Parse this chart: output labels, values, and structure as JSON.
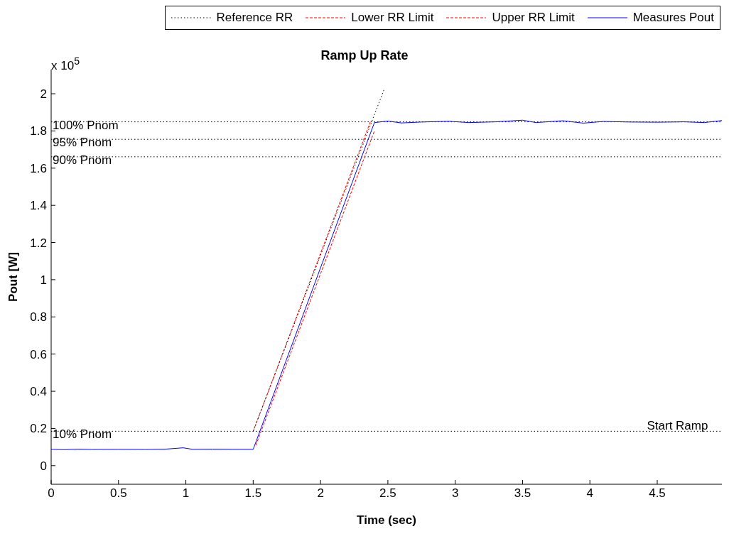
{
  "chart_data": {
    "type": "line",
    "title": "Ramp Up Rate",
    "xlabel": "Time (sec)",
    "ylabel": "Pout [W]",
    "xlim": [
      0,
      4.98
    ],
    "xticks": [
      0,
      0.5,
      1,
      1.5,
      2,
      2.5,
      3,
      3.5,
      4,
      4.5
    ],
    "ylim": [
      -0.1,
      2.13
    ],
    "yticks": [
      0,
      0.2,
      0.4,
      0.6,
      0.8,
      1,
      1.2,
      1.4,
      1.6,
      1.8,
      2
    ],
    "legend": "top",
    "marker": "none",
    "series": [
      {
        "name": "Reference RR",
        "color": "#000000",
        "line_style": "dotted",
        "x": [
          1.5,
          2.47
        ],
        "values": [
          0.185,
          2.02
        ]
      },
      {
        "name": "Lower RR Limit",
        "color": "#ff0000",
        "line_style": "dashed",
        "x": [
          1.52,
          2.4
        ],
        "values": [
          0.11,
          1.8
        ]
      },
      {
        "name": "Upper RR Limit",
        "color": "#ff0000",
        "line_style": "dashed",
        "x": [
          1.5,
          2.37
        ],
        "values": [
          0.185,
          1.849
        ]
      },
      {
        "name": "Measures Pout",
        "color": "#0000ff",
        "line_style": "solid",
        "x": [
          0,
          0.1,
          0.2,
          0.3,
          0.5,
          0.7,
          0.85,
          0.98,
          1.05,
          1.2,
          1.35,
          1.5,
          2.4,
          2.5,
          2.6,
          2.75,
          2.95,
          3.1,
          3.3,
          3.5,
          3.6,
          3.8,
          3.95,
          4.1,
          4.3,
          4.5,
          4.7,
          4.85,
          4.98
        ],
        "values": [
          0.088,
          0.086,
          0.089,
          0.087,
          0.088,
          0.087,
          0.089,
          0.096,
          0.088,
          0.089,
          0.088,
          0.088,
          1.845,
          1.853,
          1.843,
          1.848,
          1.852,
          1.845,
          1.849,
          1.858,
          1.845,
          1.855,
          1.842,
          1.851,
          1.848,
          1.847,
          1.849,
          1.845,
          1.856
        ]
      }
    ],
    "ref_lines": [
      {
        "axis": "y",
        "value": 1.849,
        "label": "100% Pnom",
        "color": "#000000",
        "line_style": "dotted"
      },
      {
        "axis": "y",
        "value": 1.755,
        "label": "95% Pnom",
        "color": "#000000",
        "line_style": "dotted"
      },
      {
        "axis": "y",
        "value": 1.661,
        "label": "90% Pnom",
        "color": "#000000",
        "line_style": "dotted"
      },
      {
        "axis": "y",
        "value": 0.185,
        "label": "10% Pnom",
        "color": "#000000",
        "line_style": "dotted"
      }
    ],
    "annotations": [
      "x 10$^{5}$",
      {
        "text": "Start Ramp",
        "x": 4.65,
        "y": 0.185
      }
    ]
  }
}
